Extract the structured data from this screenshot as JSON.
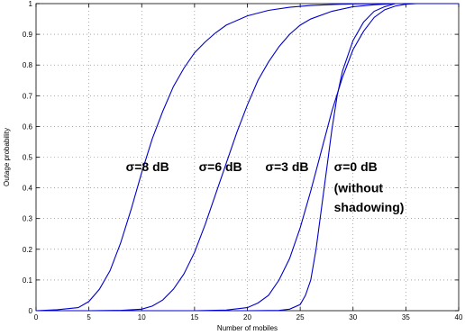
{
  "chart_data": {
    "type": "line",
    "title": "",
    "xlabel": "Number of mobiles",
    "ylabel": "Outage probability",
    "xlim": [
      0,
      40
    ],
    "ylim": [
      0,
      1
    ],
    "xticks": [
      0,
      5,
      10,
      15,
      20,
      25,
      30,
      35,
      40
    ],
    "yticks": [
      0,
      0.1,
      0.2,
      0.3,
      0.4,
      0.5,
      0.6,
      0.7,
      0.8,
      0.9,
      1
    ],
    "grid": true,
    "line_color": "#0000cc",
    "series": [
      {
        "x": [
          0,
          2,
          4,
          5,
          6,
          7,
          8,
          9,
          10,
          11,
          12,
          13,
          14,
          15,
          16,
          17,
          18,
          20,
          22,
          24,
          26,
          28,
          30,
          34,
          40
        ],
        "y": [
          0,
          0.003,
          0.01,
          0.03,
          0.07,
          0.13,
          0.22,
          0.33,
          0.45,
          0.56,
          0.65,
          0.73,
          0.79,
          0.84,
          0.875,
          0.905,
          0.93,
          0.96,
          0.978,
          0.988,
          0.994,
          0.997,
          0.999,
          1.0,
          1.0
        ]
      },
      {
        "x": [
          0,
          5,
          8,
          10,
          11,
          12,
          13,
          14,
          15,
          16,
          17,
          18,
          19,
          20,
          21,
          22,
          23,
          24,
          25,
          26,
          28,
          30,
          32,
          34,
          40
        ],
        "y": [
          0,
          0,
          0.001,
          0.005,
          0.015,
          0.035,
          0.07,
          0.12,
          0.19,
          0.28,
          0.38,
          0.48,
          0.58,
          0.67,
          0.75,
          0.81,
          0.86,
          0.9,
          0.93,
          0.95,
          0.975,
          0.99,
          0.996,
          1.0,
          1.0
        ]
      },
      {
        "x": [
          0,
          15,
          18,
          20,
          21,
          22,
          23,
          24,
          25,
          26,
          27,
          28,
          29,
          30,
          31,
          32,
          33,
          34,
          35,
          36,
          40
        ],
        "y": [
          0,
          0,
          0.002,
          0.01,
          0.025,
          0.05,
          0.1,
          0.17,
          0.27,
          0.39,
          0.52,
          0.65,
          0.76,
          0.85,
          0.91,
          0.955,
          0.98,
          0.992,
          0.998,
          1.0,
          1.0
        ]
      },
      {
        "x": [
          0,
          20,
          23,
          24,
          25,
          25.5,
          26,
          26.5,
          27,
          27.5,
          28,
          28.5,
          29,
          30,
          31,
          32,
          33,
          34,
          40
        ],
        "y": [
          0,
          0,
          0.001,
          0.005,
          0.02,
          0.05,
          0.1,
          0.2,
          0.33,
          0.46,
          0.59,
          0.7,
          0.78,
          0.88,
          0.94,
          0.975,
          0.99,
          1.0,
          1.0
        ]
      }
    ],
    "annotations": [
      {
        "text": "σ=8 dB",
        "x": 8.5,
        "y": 0.455
      },
      {
        "text": "σ=6 dB",
        "x": 15.4,
        "y": 0.455
      },
      {
        "text": "σ=3 dB",
        "x": 21.7,
        "y": 0.455
      },
      {
        "text": "σ=0 dB",
        "x": 28.2,
        "y": 0.455
      },
      {
        "text": "(without",
        "x": 28.2,
        "y": 0.385
      },
      {
        "text": "shadowing)",
        "x": 28.2,
        "y": 0.322
      }
    ]
  }
}
